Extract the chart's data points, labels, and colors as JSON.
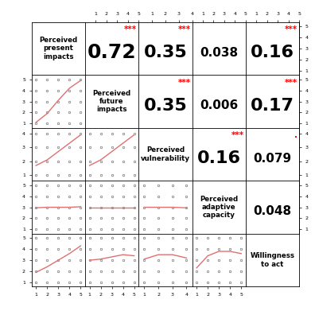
{
  "variables": [
    "Perceived\npresent\nimpacts",
    "Perceived\nfuture\nimpacts",
    "Perceived\nvulnerability",
    "Perceived\nadaptive\ncapacity",
    "Willingness\nto act"
  ],
  "correlations": [
    [
      null,
      "0.72",
      "0.35",
      "0.038",
      "0.16"
    ],
    [
      null,
      null,
      "0.35",
      "0.006",
      "0.17"
    ],
    [
      null,
      null,
      null,
      "0.16",
      "0.079"
    ],
    [
      null,
      null,
      null,
      null,
      "0.048"
    ],
    [
      null,
      null,
      null,
      null,
      null
    ]
  ],
  "stars": [
    [
      null,
      "***",
      "***",
      "",
      "***"
    ],
    [
      null,
      null,
      "***",
      "",
      "***"
    ],
    [
      null,
      null,
      null,
      "***",
      "."
    ],
    [
      null,
      null,
      null,
      null,
      ""
    ],
    [
      null,
      null,
      null,
      null,
      null
    ]
  ],
  "var_ranges": [
    [
      1,
      5
    ],
    [
      1,
      5
    ],
    [
      1,
      4
    ],
    [
      1,
      5
    ],
    [
      1,
      5
    ]
  ],
  "var_ticks": [
    [
      1,
      2,
      3,
      4,
      5
    ],
    [
      1,
      2,
      3,
      4,
      5
    ],
    [
      1.0,
      2.0,
      3.0,
      4.0
    ],
    [
      1,
      2,
      3,
      4,
      5
    ],
    [
      1,
      2,
      3,
      4,
      5
    ]
  ],
  "star_color": "#ff0000",
  "line_color": "#e07070",
  "dot_edgecolor": "#888888",
  "n": 5,
  "trends": {
    "1_0": {
      "x": [
        1,
        2,
        3,
        4,
        5
      ],
      "y": [
        1.1,
        1.9,
        3.1,
        4.2,
        4.9
      ]
    },
    "2_0": {
      "x": [
        1,
        2,
        3,
        4,
        5
      ],
      "y": [
        1.7,
        2.1,
        2.7,
        3.3,
        3.9
      ]
    },
    "2_1": {
      "x": [
        1,
        2,
        3,
        4,
        5
      ],
      "y": [
        1.7,
        2.1,
        2.7,
        3.3,
        3.9
      ]
    },
    "3_0": {
      "x": [
        1,
        2,
        3,
        4,
        5
      ],
      "y": [
        2.95,
        3.0,
        3.0,
        3.0,
        3.05
      ]
    },
    "3_1": {
      "x": [
        1,
        2,
        3,
        4,
        5
      ],
      "y": [
        3.0,
        3.0,
        3.0,
        3.0,
        3.0
      ]
    },
    "3_2": {
      "x": [
        1.0,
        2.0,
        3.0,
        4.0
      ],
      "y": [
        3.0,
        3.0,
        3.0,
        2.95
      ]
    },
    "4_0": {
      "x": [
        1,
        2,
        3,
        4,
        5
      ],
      "y": [
        1.9,
        2.4,
        3.0,
        3.6,
        4.3
      ]
    },
    "4_1": {
      "x": [
        1,
        2,
        3,
        4,
        5
      ],
      "y": [
        3.0,
        3.1,
        3.3,
        3.5,
        3.4
      ]
    },
    "4_2": {
      "x": [
        1.0,
        2.0,
        3.0,
        4.0
      ],
      "y": [
        3.1,
        3.5,
        3.5,
        3.2
      ]
    },
    "4_3": {
      "x": [
        1,
        2,
        3,
        4,
        5
      ],
      "y": [
        2.3,
        3.4,
        3.8,
        3.8,
        3.6
      ]
    }
  }
}
